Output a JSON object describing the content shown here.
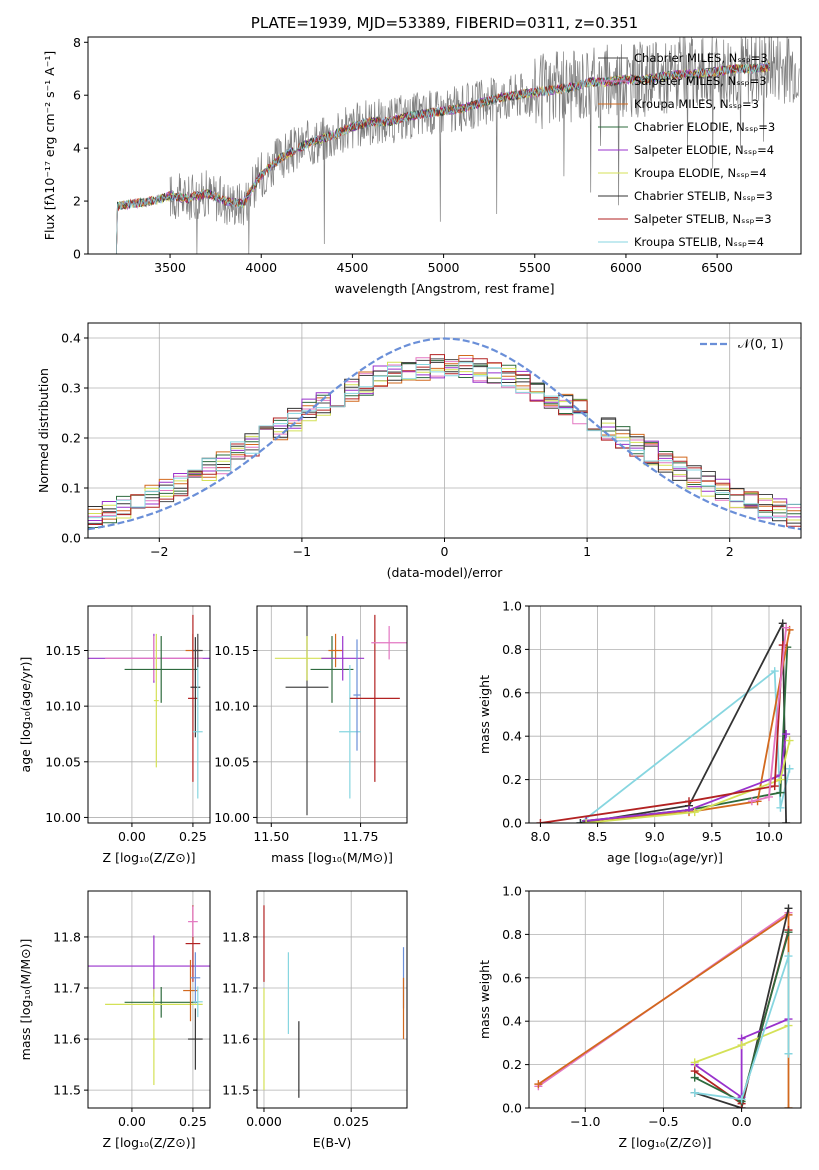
{
  "chart_data": [
    {
      "type": "line",
      "panel": "spectrum",
      "title": "PLATE=1939, MJD=53389, FIBERID=0311, z=0.351",
      "xlabel": "wavelength [Angstrom, rest frame]",
      "ylabel": "Flux [fλ10⁻¹⁷ erg cm⁻² s⁻¹ A⁻¹]",
      "xlim": [
        3050,
        6960
      ],
      "ylim": [
        0,
        8.2
      ],
      "xticks": [
        3500,
        4000,
        4500,
        5000,
        5500,
        6000,
        6500
      ],
      "yticks": [
        0,
        2,
        4,
        6,
        8
      ],
      "legend_position": "upper right",
      "data_start_wavelength": 3200,
      "observed": {
        "name": "",
        "x": [
          3200,
          3300,
          3400,
          3500,
          3600,
          3700,
          3800,
          3900,
          4000,
          4100,
          4200,
          4300,
          4400,
          4500,
          4600,
          4700,
          4800,
          4900,
          5000,
          5100,
          5200,
          5300,
          5400,
          5500,
          5600,
          5700,
          5800,
          5900,
          6000,
          6100,
          6200,
          6300,
          6400,
          6500,
          6600,
          6700,
          6800,
          6950
        ],
        "y": [
          1.8,
          1.9,
          2.0,
          2.2,
          2.1,
          2.3,
          2.0,
          1.9,
          3.0,
          3.6,
          4.0,
          4.3,
          4.5,
          4.8,
          5.0,
          5.0,
          5.2,
          5.3,
          5.4,
          5.5,
          5.7,
          5.9,
          6.0,
          6.1,
          6.2,
          6.3,
          6.5,
          6.5,
          6.6,
          6.6,
          6.7,
          6.8,
          6.8,
          6.9,
          7.0,
          7.0,
          7.1,
          7.1
        ],
        "noise": 0.9
      },
      "series": [
        {
          "name": "Chabrier MILES, N_SSP=3",
          "color": "#4a4a4a"
        },
        {
          "name": "Salpeter MILES, N_SSP=3",
          "color": "#e377c2"
        },
        {
          "name": "Kroupa MILES, N_SSP=3",
          "color": "#d2691e"
        },
        {
          "name": "Chabrier ELODIE, N_SSP=3",
          "color": "#2e6b3e"
        },
        {
          "name": "Salpeter ELODIE, N_SSP=4",
          "color": "#9932cc"
        },
        {
          "name": "Kroupa ELODIE, N_SSP=4",
          "color": "#d4e157"
        },
        {
          "name": "Chabrier STELIB, N_SSP=3",
          "color": "#333333"
        },
        {
          "name": "Salpeter STELIB, N_SSP=3",
          "color": "#b22222"
        },
        {
          "name": "Kroupa STELIB, N_SSP=4",
          "color": "#87d6e0"
        }
      ]
    },
    {
      "type": "line",
      "panel": "residuals",
      "xlabel": "(data-model)/error",
      "ylabel": "Normed distribution",
      "xlim": [
        -2.5,
        2.5
      ],
      "ylim": [
        0,
        0.43
      ],
      "xticks": [
        -2,
        -1,
        0,
        1,
        2
      ],
      "yticks": [
        0.0,
        0.1,
        0.2,
        0.3,
        0.4
      ],
      "bin_width": 0.1,
      "gaussian": {
        "name": "𝒩(0, 1)",
        "mu": 0,
        "sigma": 1,
        "color": "#6a8fd8"
      },
      "legend_position": "upper right"
    },
    {
      "type": "scatter",
      "panel": "age_vs_Z",
      "xlabel": "Z [log₁₀(Z/Z⊙)]",
      "ylabel": "age  [log₁₀(age/yr)]",
      "xlim": [
        -0.18,
        0.32
      ],
      "ylim": [
        9.995,
        10.19
      ],
      "xticks": [
        0.0,
        0.25
      ],
      "yticks": [
        10.0,
        10.05,
        10.1,
        10.15
      ],
      "points": [
        {
          "x": 0.09,
          "y": 10.143,
          "xerr": 0.27,
          "yerr": 0.022,
          "color": "#9932cc"
        },
        {
          "x": 0.09,
          "y": 10.143,
          "xerr": 0.2,
          "yerr": 0.02,
          "color": "#e377c2"
        },
        {
          "x": 0.1,
          "y": 10.105,
          "xerr": 0.01,
          "yerr": 0.06,
          "color": "#d4e157"
        },
        {
          "x": 0.12,
          "y": 10.133,
          "xerr": 0.15,
          "yerr": 0.03,
          "color": "#2e6b3e"
        },
        {
          "x": 0.25,
          "y": 10.15,
          "xerr": 0.03,
          "yerr": 0.015,
          "color": "#d2691e"
        },
        {
          "x": 0.25,
          "y": 10.107,
          "xerr": 0.02,
          "yerr": 0.075,
          "color": "#b22222"
        },
        {
          "x": 0.26,
          "y": 10.117,
          "xerr": 0.02,
          "yerr": 0.045,
          "color": "#333333"
        },
        {
          "x": 0.27,
          "y": 10.077,
          "xerr": 0.02,
          "yerr": 0.06,
          "color": "#87d6e0"
        },
        {
          "x": 0.27,
          "y": 10.15,
          "xerr": 0.02,
          "yerr": 0.015,
          "color": "#4a4a4a"
        }
      ]
    },
    {
      "type": "scatter",
      "panel": "age_vs_mass",
      "xlabel": "mass [log₁₀(M/M⊙)]",
      "ylabel": "",
      "xlim": [
        11.46,
        11.88
      ],
      "ylim": [
        9.995,
        10.19
      ],
      "xticks": [
        11.5,
        11.75
      ],
      "yticks": [
        10.0,
        10.05,
        10.1,
        10.15
      ],
      "points": [
        {
          "x": 11.6,
          "y": 10.117,
          "xerr": 0.06,
          "yerr": 0.115,
          "color": "#4a4a4a"
        },
        {
          "x": 11.6,
          "y": 10.143,
          "xerr": 0.09,
          "yerr": 0.02,
          "color": "#d4e157"
        },
        {
          "x": 11.67,
          "y": 10.133,
          "xerr": 0.06,
          "yerr": 0.03,
          "color": "#2e6b3e"
        },
        {
          "x": 11.68,
          "y": 10.15,
          "xerr": 0.02,
          "yerr": 0.015,
          "color": "#d2691e"
        },
        {
          "x": 11.7,
          "y": 10.143,
          "xerr": 0.06,
          "yerr": 0.02,
          "color": "#9932cc"
        },
        {
          "x": 11.72,
          "y": 10.077,
          "xerr": 0.03,
          "yerr": 0.06,
          "color": "#87d6e0"
        },
        {
          "x": 11.74,
          "y": 10.11,
          "xerr": 0.01,
          "yerr": 0.05,
          "color": "#6a8fd8"
        },
        {
          "x": 11.79,
          "y": 10.107,
          "xerr": 0.07,
          "yerr": 0.075,
          "color": "#b22222"
        },
        {
          "x": 11.83,
          "y": 10.157,
          "xerr": 0.05,
          "yerr": 0.015,
          "color": "#e377c2"
        }
      ]
    },
    {
      "type": "line",
      "panel": "massweight_vs_age",
      "xlabel": "age  [log₁₀(age/yr)]",
      "ylabel": "mass weight",
      "xlim": [
        7.9,
        10.28
      ],
      "ylim": [
        0,
        1.0
      ],
      "xticks": [
        8.0,
        8.5,
        9.0,
        9.5,
        10.0
      ],
      "yticks": [
        0.0,
        0.2,
        0.4,
        0.6,
        0.8,
        1.0
      ],
      "series": [
        {
          "color": "#87d6e0",
          "x": [
            8.35,
            10.05,
            10.1,
            10.18
          ],
          "y": [
            0.0,
            0.7,
            0.07,
            0.25
          ]
        },
        {
          "color": "#333333",
          "x": [
            8.35,
            9.3,
            10.12,
            10.15
          ],
          "y": [
            0.0,
            0.08,
            0.92,
            0.0
          ]
        },
        {
          "color": "#2e6b3e",
          "x": [
            8.4,
            9.3,
            10.1,
            10.16
          ],
          "y": [
            0.01,
            0.06,
            0.14,
            0.81
          ]
        },
        {
          "color": "#d2691e",
          "x": [
            8.4,
            9.3,
            9.9,
            10.18
          ],
          "y": [
            0.01,
            0.05,
            0.1,
            0.89
          ]
        },
        {
          "color": "#9932cc",
          "x": [
            8.4,
            9.3,
            10.1,
            10.15
          ],
          "y": [
            0.01,
            0.06,
            0.22,
            0.41
          ]
        },
        {
          "color": "#d4e157",
          "x": [
            8.4,
            9.35,
            10.1,
            10.18
          ],
          "y": [
            0.0,
            0.05,
            0.2,
            0.38
          ]
        },
        {
          "color": "#b22222",
          "x": [
            8.0,
            9.3,
            10.05,
            10.12
          ],
          "y": [
            0.0,
            0.1,
            0.17,
            0.82
          ]
        },
        {
          "color": "#e377c2",
          "x": [
            9.85,
            10.0,
            10.15
          ],
          "y": [
            0.1,
            0.12,
            0.9
          ]
        }
      ]
    },
    {
      "type": "scatter",
      "panel": "mass_vs_Z",
      "xlabel": "Z [log₁₀(Z/Z⊙)]",
      "ylabel": "mass [log₁₀(M/M⊙)]",
      "xlim": [
        -0.18,
        0.32
      ],
      "ylim": [
        11.465,
        11.89
      ],
      "xticks": [
        0.0,
        0.25
      ],
      "yticks": [
        11.5,
        11.6,
        11.7,
        11.8
      ],
      "points": [
        {
          "x": 0.09,
          "y": 11.743,
          "xerr": 0.27,
          "yerr": 0.06,
          "color": "#9932cc"
        },
        {
          "x": 0.09,
          "y": 11.6,
          "xerr": 0.01,
          "yerr": 0.09,
          "color": "#d4e157"
        },
        {
          "x": 0.12,
          "y": 11.672,
          "xerr": 0.15,
          "yerr": 0.03,
          "color": "#2e6b3e"
        },
        {
          "x": 0.09,
          "y": 11.668,
          "xerr": 0.2,
          "yerr": 0.03,
          "color": "#d4e157"
        },
        {
          "x": 0.24,
          "y": 11.695,
          "xerr": 0.03,
          "yerr": 0.06,
          "color": "#d2691e"
        },
        {
          "x": 0.25,
          "y": 11.787,
          "xerr": 0.03,
          "yerr": 0.075,
          "color": "#b22222"
        },
        {
          "x": 0.26,
          "y": 11.6,
          "xerr": 0.03,
          "yerr": 0.06,
          "color": "#333333"
        },
        {
          "x": 0.25,
          "y": 11.83,
          "xerr": 0.02,
          "yerr": 0.03,
          "color": "#e377c2"
        },
        {
          "x": 0.26,
          "y": 11.72,
          "xerr": 0.02,
          "yerr": 0.05,
          "color": "#6a8fd8"
        },
        {
          "x": 0.27,
          "y": 11.673,
          "xerr": 0.02,
          "yerr": 0.03,
          "color": "#87d6e0"
        }
      ]
    },
    {
      "type": "scatter",
      "panel": "mass_vs_EBV",
      "xlabel": "E(B-V)",
      "ylabel": "",
      "xlim": [
        -0.002,
        0.041
      ],
      "ylim": [
        11.465,
        11.89
      ],
      "xticks": [
        0.0,
        0.025
      ],
      "yticks": [
        11.5,
        11.6,
        11.7,
        11.8
      ],
      "points": [
        {
          "x": 0.0,
          "y": 11.787,
          "yerr": 0.075,
          "color": "#b22222"
        },
        {
          "x": 0.0,
          "y": 11.6,
          "yerr": 0.1,
          "color": "#d4e157"
        },
        {
          "x": 0.007,
          "y": 11.69,
          "yerr": 0.08,
          "color": "#87d6e0"
        },
        {
          "x": 0.01,
          "y": 11.56,
          "yerr": 0.075,
          "color": "#333333"
        },
        {
          "x": 0.04,
          "y": 11.72,
          "yerr": 0.06,
          "color": "#6a8fd8"
        },
        {
          "x": 0.04,
          "y": 11.66,
          "yerr": 0.06,
          "color": "#d2691e"
        }
      ]
    },
    {
      "type": "line",
      "panel": "massweight_vs_Z",
      "xlabel": "Z [log₁₀(Z/Z⊙)]",
      "ylabel": "mass weight",
      "xlim": [
        -1.36,
        0.38
      ],
      "ylim": [
        0,
        1.0
      ],
      "xticks": [
        -1.0,
        -0.5,
        0.0
      ],
      "yticks": [
        0.0,
        0.2,
        0.4,
        0.6,
        0.8,
        1.0
      ],
      "series": [
        {
          "color": "#e377c2",
          "x": [
            -1.3,
            0.3
          ],
          "y": [
            0.1,
            0.9
          ]
        },
        {
          "color": "#d2691e",
          "x": [
            -1.3,
            0.3,
            0.3
          ],
          "y": [
            0.11,
            0.89,
            0.0
          ]
        },
        {
          "color": "#333333",
          "x": [
            -0.3,
            0.0,
            0.3
          ],
          "y": [
            0.07,
            0.0,
            0.92
          ]
        },
        {
          "color": "#9932cc",
          "x": [
            -0.3,
            0.0,
            0.0,
            0.3
          ],
          "y": [
            0.2,
            0.05,
            0.32,
            0.41
          ]
        },
        {
          "color": "#d4e157",
          "x": [
            -0.3,
            0.0,
            0.3
          ],
          "y": [
            0.21,
            0.29,
            0.38
          ]
        },
        {
          "color": "#b22222",
          "x": [
            -0.3,
            0.0,
            0.3
          ],
          "y": [
            0.17,
            0.02,
            0.82
          ]
        },
        {
          "color": "#2e6b3e",
          "x": [
            -0.3,
            0.0,
            0.3
          ],
          "y": [
            0.14,
            0.03,
            0.81
          ]
        },
        {
          "color": "#87d6e0",
          "x": [
            -0.3,
            0.0,
            0.3,
            0.3
          ],
          "y": [
            0.07,
            0.04,
            0.7,
            0.25
          ]
        }
      ]
    }
  ]
}
